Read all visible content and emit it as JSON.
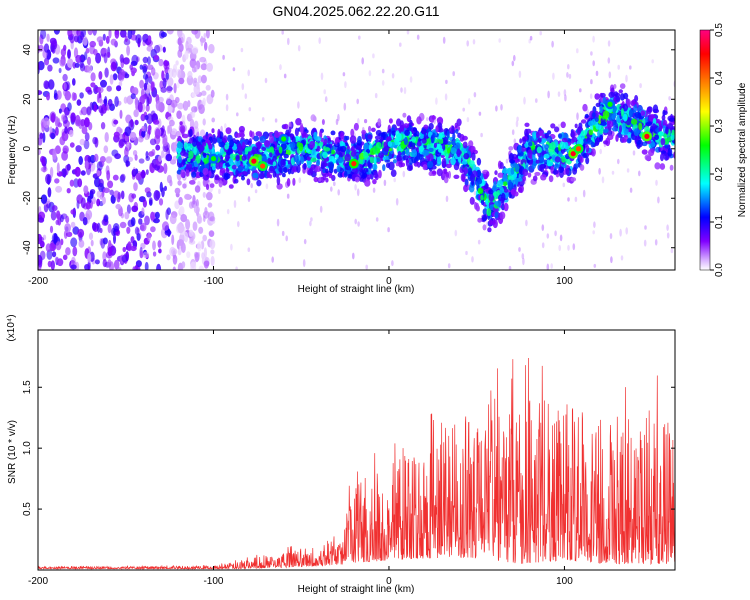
{
  "figure": {
    "title": "GN04.2025.062.22.20.G11"
  },
  "chart_data": [
    {
      "type": "heatmap",
      "title": "GN04.2025.062.22.20.G11",
      "xlabel": "Height of straight line (km)",
      "ylabel": "Frequency (Hz)",
      "xlim": [
        -200,
        163
      ],
      "ylim": [
        -49,
        48
      ],
      "xticks": [
        -200,
        -100,
        0,
        100
      ],
      "yticks": [
        -40,
        -20,
        0,
        20,
        40
      ],
      "colorbar": {
        "label": "Normalized spectral amplitude",
        "range": [
          0.0,
          0.5
        ],
        "ticks": [
          0.0,
          0.1,
          0.2,
          0.3,
          0.4,
          0.5
        ],
        "colors": [
          "#ffffff",
          "#8000ff",
          "#0000ff",
          "#00ffff",
          "#00ff00",
          "#ffff00",
          "#ff8000",
          "#ff0000",
          "#ff0080"
        ]
      },
      "bands": [
        {
          "x_range": [
            -200,
            -125
          ],
          "description_level": 0.05,
          "freq_spread": [
            -49,
            48
          ]
        },
        {
          "x_range": [
            -120,
            163
          ],
          "description_level": 0.18,
          "freq_center": 0,
          "freq_halfwidth": 10
        }
      ],
      "hotspots": [
        {
          "x": -100,
          "y": -4,
          "value": 0.25
        },
        {
          "x": -77,
          "y": -5,
          "value": 0.45
        },
        {
          "x": -72,
          "y": -7,
          "value": 0.4
        },
        {
          "x": -60,
          "y": 4,
          "value": 0.25
        },
        {
          "x": -20,
          "y": -6,
          "value": 0.42
        },
        {
          "x": 105,
          "y": -2,
          "value": 0.45
        },
        {
          "x": 108,
          "y": 0,
          "value": 0.4
        },
        {
          "x": 126,
          "y": 18,
          "value": 0.25
        },
        {
          "x": 147,
          "y": 5,
          "value": 0.45
        }
      ],
      "ridge": [
        {
          "x": -120,
          "y": -2
        },
        {
          "x": -75,
          "y": -4
        },
        {
          "x": -50,
          "y": 0
        },
        {
          "x": -20,
          "y": -4
        },
        {
          "x": 10,
          "y": 2
        },
        {
          "x": 40,
          "y": 0
        },
        {
          "x": 58,
          "y": -24
        },
        {
          "x": 80,
          "y": 0
        },
        {
          "x": 105,
          "y": -2
        },
        {
          "x": 125,
          "y": 15
        },
        {
          "x": 163,
          "y": 3
        }
      ]
    },
    {
      "type": "line",
      "xlabel": "Height of straight line (km)",
      "ylabel": "SNR (10 * v/v)",
      "y_multiplier": "(x10⁴)",
      "xlim": [
        -200,
        163
      ],
      "ylim": [
        0,
        1.97
      ],
      "xticks": [
        -200,
        -100,
        0,
        100
      ],
      "yticks": [
        0.5,
        1.0,
        1.5
      ],
      "ytick_labels": [
        "0.5",
        "1.0",
        "1.5"
      ],
      "color": "#f03030",
      "envelope": [
        {
          "x": -200,
          "low": 0.01,
          "high": 0.03
        },
        {
          "x": -100,
          "low": 0.01,
          "high": 0.04
        },
        {
          "x": -90,
          "low": 0.01,
          "high": 0.07
        },
        {
          "x": -60,
          "low": 0.02,
          "high": 0.18
        },
        {
          "x": -30,
          "low": 0.04,
          "high": 0.28
        },
        {
          "x": -18,
          "low": 0.06,
          "high": 0.95
        },
        {
          "x": 0,
          "low": 0.08,
          "high": 1.0
        },
        {
          "x": 30,
          "low": 0.1,
          "high": 1.35
        },
        {
          "x": 50,
          "low": 0.1,
          "high": 1.55
        },
        {
          "x": 75,
          "low": 0.05,
          "high": 1.77
        },
        {
          "x": 100,
          "low": 0.08,
          "high": 1.6
        },
        {
          "x": 125,
          "low": 0.05,
          "high": 1.45
        },
        {
          "x": 163,
          "low": 0.05,
          "high": 1.65
        }
      ]
    }
  ]
}
